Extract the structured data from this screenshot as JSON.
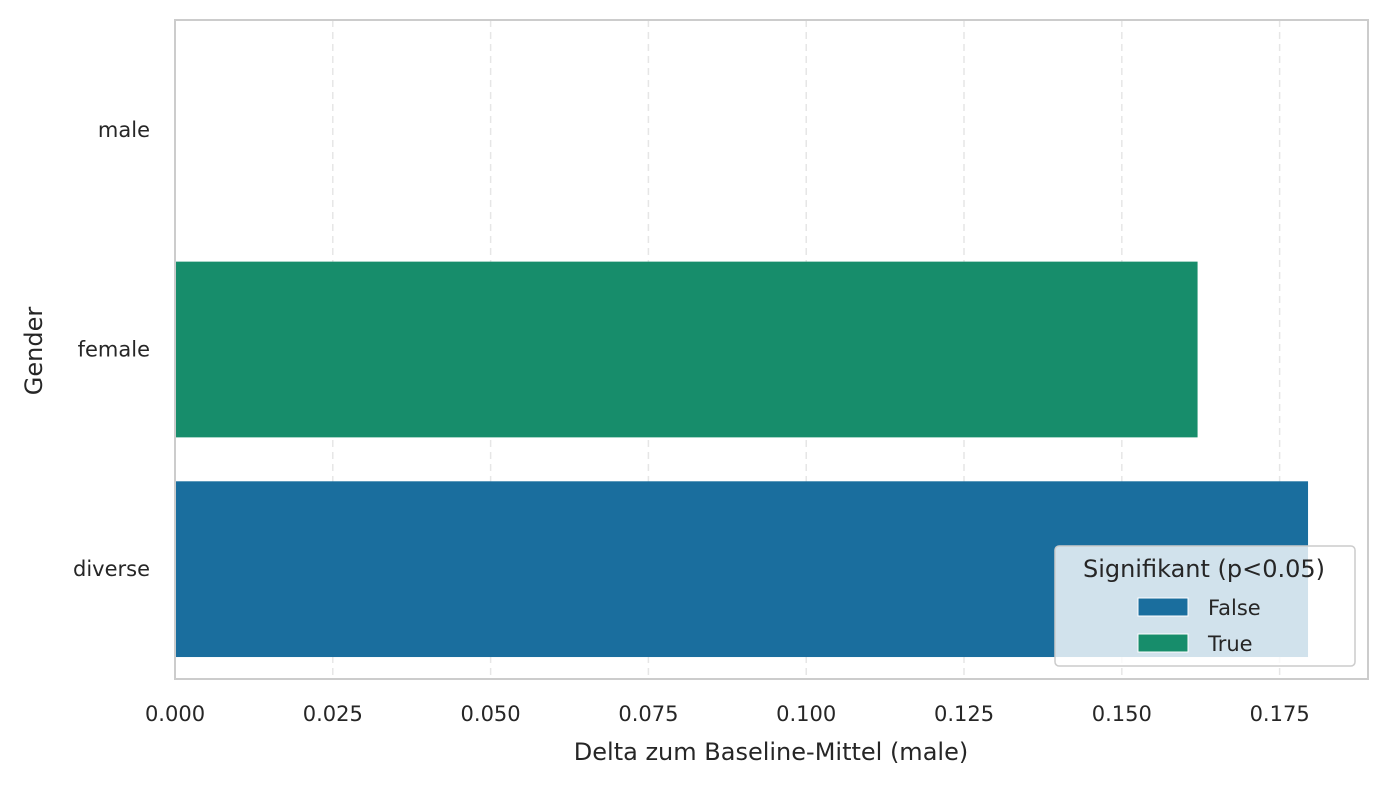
{
  "chart_data": {
    "type": "bar",
    "orientation": "horizontal",
    "categories": [
      "male",
      "female",
      "diverse"
    ],
    "values": [
      0.0,
      0.162,
      0.1795
    ],
    "significant": [
      null,
      "True",
      "False"
    ],
    "xlabel": "Delta zum Baseline-Mittel (male)",
    "ylabel": "Gender",
    "xlim": [
      0.0,
      0.189
    ],
    "xticks": [
      0.0,
      0.025,
      0.05,
      0.075,
      0.1,
      0.125,
      0.15,
      0.175
    ],
    "xtick_labels": [
      "0.000",
      "0.025",
      "0.050",
      "0.075",
      "0.100",
      "0.125",
      "0.150",
      "0.175"
    ],
    "grid": "x-dashed",
    "legend": {
      "title": "Signifikant (p<0.05)",
      "placement": "lower-right",
      "entries": [
        {
          "label": "False",
          "color": "#1a6e9e"
        },
        {
          "label": "True",
          "color": "#178d6b"
        }
      ]
    },
    "colors": {
      "False": "#1a6e9e",
      "True": "#178d6b"
    }
  }
}
